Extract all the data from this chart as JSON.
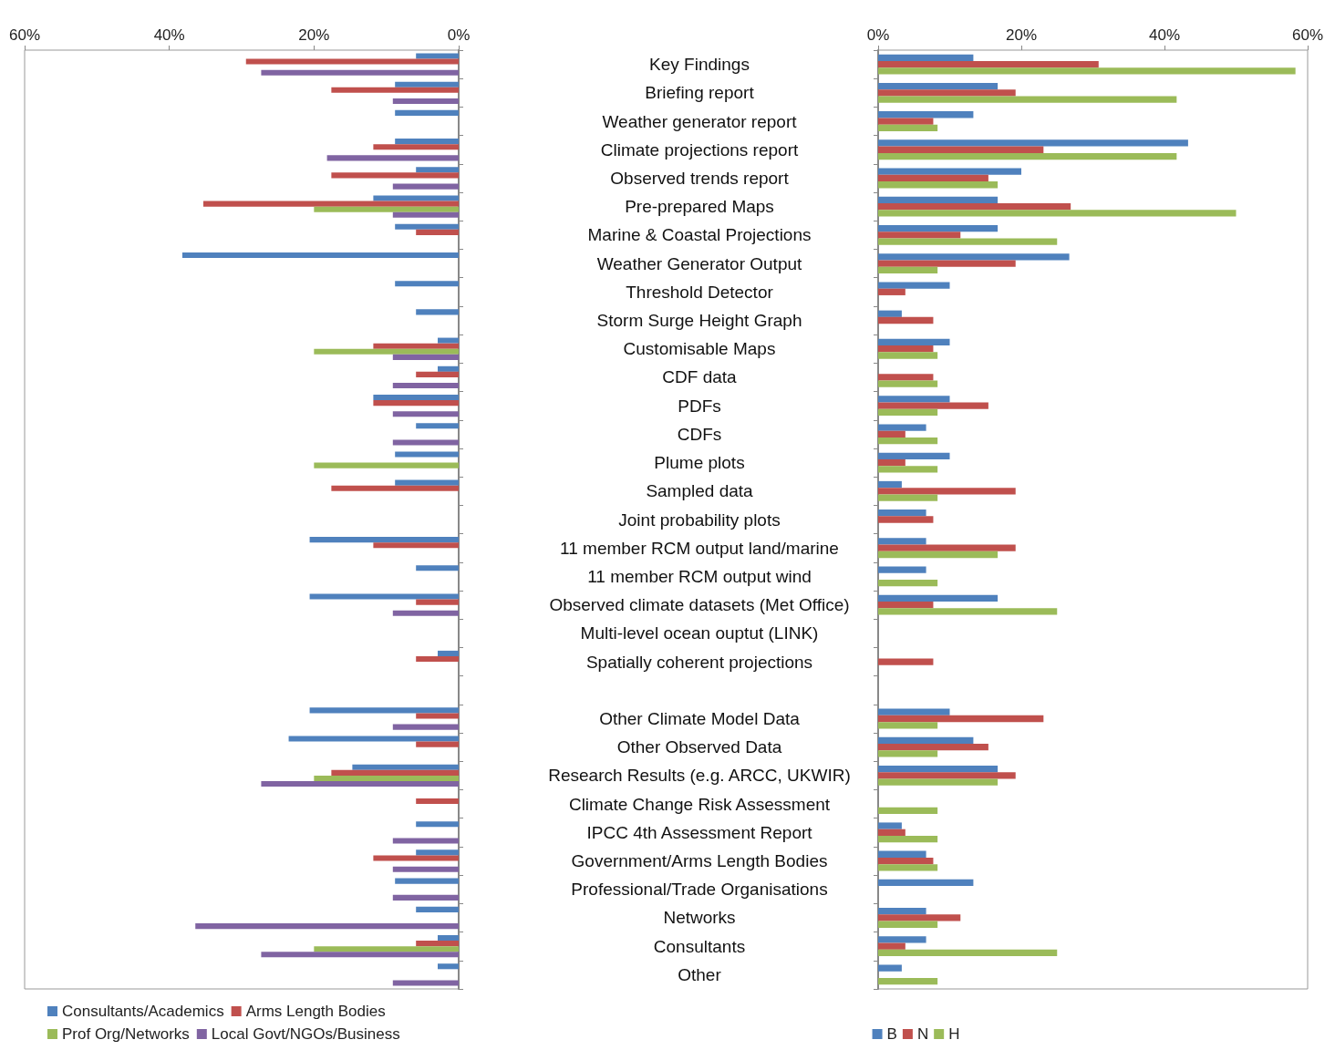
{
  "chart_data": [
    {
      "type": "bar",
      "orientation": "horizontal",
      "tick_labels": "x",
      "legend": "bottom left",
      "xlim": [
        60,
        0
      ],
      "xticks": [
        {
          "value": 60,
          "label": "60%"
        },
        {
          "value": 40,
          "label": "40%"
        },
        {
          "value": 20,
          "label": "20%"
        },
        {
          "value": 0,
          "label": "0%"
        }
      ],
      "series": [
        {
          "name": "Consultants/Academics",
          "color": "#4f81bd",
          "values": [
            5.9,
            8.8,
            8.8,
            8.8,
            5.9,
            11.8,
            8.8,
            38.2,
            8.8,
            5.9,
            2.9,
            2.9,
            11.8,
            5.9,
            8.8,
            8.8,
            null,
            20.6,
            5.9,
            20.6,
            null,
            2.9,
            null,
            20.6,
            23.5,
            14.7,
            null,
            5.9,
            5.9,
            8.8,
            5.9,
            2.9,
            2.9
          ]
        },
        {
          "name": "Arms Length Bodies",
          "color": "#c0504d",
          "values": [
            29.4,
            17.6,
            null,
            11.8,
            17.6,
            35.3,
            5.9,
            null,
            null,
            null,
            11.8,
            5.9,
            11.8,
            null,
            null,
            17.6,
            null,
            11.8,
            null,
            5.9,
            null,
            5.9,
            null,
            5.9,
            5.9,
            17.6,
            5.9,
            null,
            11.8,
            null,
            null,
            5.9,
            null
          ]
        },
        {
          "name": "Prof Org/Networks",
          "color": "#9bbb59",
          "values": [
            null,
            null,
            null,
            null,
            null,
            20,
            null,
            null,
            null,
            null,
            20,
            null,
            null,
            null,
            20,
            null,
            null,
            null,
            null,
            null,
            null,
            null,
            null,
            null,
            null,
            20,
            null,
            null,
            null,
            null,
            null,
            20,
            null
          ]
        },
        {
          "name": "Local Govt/NGOs/Business",
          "color": "#8064a2",
          "values": [
            27.3,
            9.1,
            null,
            18.2,
            9.1,
            9.1,
            null,
            null,
            null,
            null,
            9.1,
            9.1,
            9.1,
            9.1,
            null,
            null,
            null,
            null,
            null,
            9.1,
            null,
            null,
            null,
            9.1,
            null,
            27.3,
            null,
            9.1,
            9.1,
            9.1,
            36.4,
            27.3,
            9.1
          ]
        }
      ]
    },
    {
      "type": "bar",
      "orientation": "horizontal",
      "legend": "bottom",
      "categories": [
        "Key Findings",
        "Briefing report",
        "Weather generator report",
        "Climate projections report",
        "Observed trends report",
        "Pre-prepared Maps",
        "Marine & Coastal Projections",
        "Weather Generator Output",
        "Threshold Detector",
        "Storm Surge Height Graph",
        "Customisable Maps",
        "CDF data",
        "PDFs",
        "CDFs",
        "Plume plots",
        "Sampled data",
        "Joint probability plots",
        "11 member RCM output land/marine",
        "11 member RCM output wind",
        "Observed climate datasets (Met Office)",
        "Multi-level ocean ouptut (LINK)",
        "Spatially coherent projections",
        null,
        "Other Climate Model Data",
        "Other Observed Data",
        "Research Results (e.g. ARCC, UKWIR)",
        "Climate Change Risk Assessment",
        "IPCC 4th Assessment Report",
        "Government/Arms Length Bodies",
        "Professional/Trade Organisations",
        "Networks",
        "Consultants",
        "Other"
      ],
      "xlim": [
        0,
        60
      ],
      "xticks": [
        {
          "value": 0,
          "label": "0%"
        },
        {
          "value": 20,
          "label": "20%"
        },
        {
          "value": 40,
          "label": "40%"
        },
        {
          "value": 60,
          "label": "60%"
        }
      ],
      "series": [
        {
          "name": "B",
          "color": "#4f81bd",
          "values": [
            13.3,
            16.7,
            13.3,
            43.3,
            20,
            16.7,
            16.7,
            26.7,
            10,
            3.3,
            10,
            null,
            10,
            6.7,
            10,
            3.3,
            6.7,
            6.7,
            6.7,
            16.7,
            null,
            null,
            null,
            10,
            13.3,
            16.7,
            null,
            3.3,
            6.7,
            13.3,
            6.7,
            6.7,
            3.3
          ]
        },
        {
          "name": "N",
          "color": "#c0504d",
          "values": [
            30.8,
            19.2,
            7.7,
            23.1,
            15.4,
            26.9,
            11.5,
            19.2,
            3.8,
            7.7,
            7.7,
            7.7,
            15.4,
            3.8,
            3.8,
            19.2,
            7.7,
            19.2,
            null,
            7.7,
            null,
            7.7,
            null,
            23.1,
            15.4,
            19.2,
            null,
            3.8,
            7.7,
            null,
            11.5,
            3.8,
            null
          ]
        },
        {
          "name": "H",
          "color": "#9bbb59",
          "values": [
            58.3,
            41.7,
            8.3,
            41.7,
            16.7,
            50,
            25,
            8.3,
            null,
            null,
            8.3,
            8.3,
            8.3,
            8.3,
            8.3,
            8.3,
            null,
            16.7,
            8.3,
            25,
            null,
            null,
            null,
            8.3,
            8.3,
            16.7,
            8.3,
            8.3,
            8.3,
            null,
            8.3,
            25,
            8.3
          ]
        }
      ]
    }
  ]
}
